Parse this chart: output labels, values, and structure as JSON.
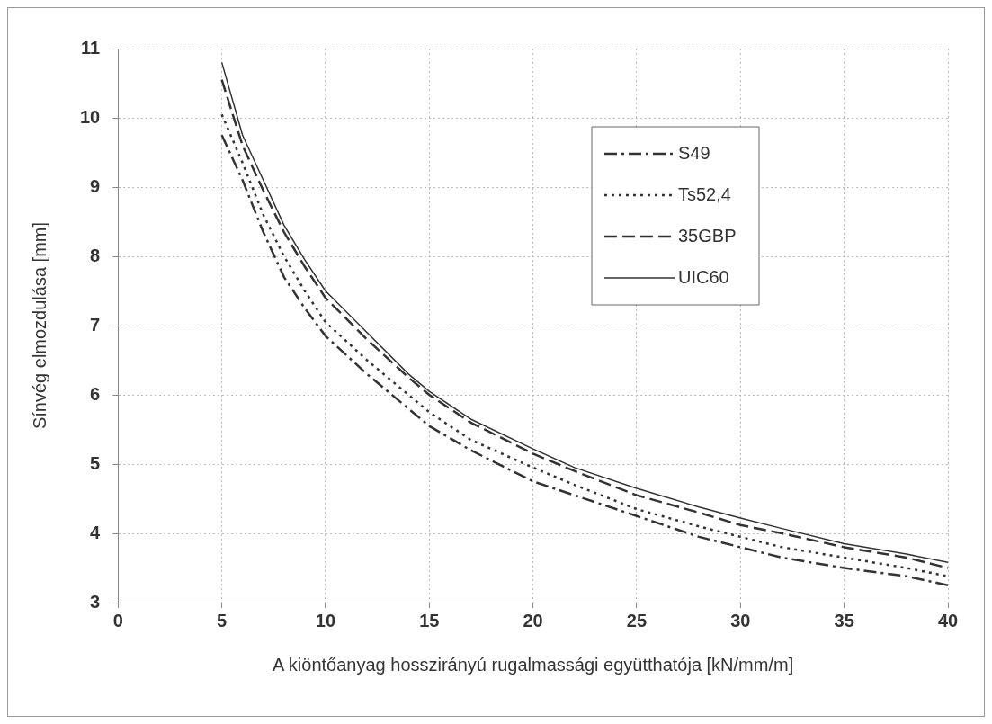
{
  "chart_data": {
    "type": "line",
    "xlabel": "A kiöntőanyag hosszirányú rugalmassági együtthatója [kN/mm/m]",
    "ylabel": "Sínvég elmozdulása [mm]",
    "x": [
      5,
      6,
      7,
      8,
      9,
      10,
      12,
      14,
      15,
      17,
      20,
      22,
      25,
      28,
      30,
      32,
      35,
      38,
      40
    ],
    "xlim": [
      0,
      40
    ],
    "xticks": [
      0,
      5,
      10,
      15,
      20,
      25,
      30,
      35,
      40
    ],
    "ylim": [
      3,
      11
    ],
    "yticks": [
      3,
      4,
      5,
      6,
      7,
      8,
      9,
      10,
      11
    ],
    "grid": true,
    "legend": "top right",
    "marker": "none",
    "series": [
      {
        "name": "S49",
        "color": "#333333",
        "line_style": "dashdot",
        "values": [
          9.75,
          9.1,
          8.35,
          7.7,
          7.25,
          6.85,
          6.3,
          5.8,
          5.55,
          5.2,
          4.75,
          4.55,
          4.25,
          3.95,
          3.8,
          3.65,
          3.5,
          3.38,
          3.25
        ]
      },
      {
        "name": "Ts52,4",
        "color": "#333333",
        "line_style": "dotted",
        "values": [
          10.05,
          9.35,
          8.6,
          8.0,
          7.5,
          7.05,
          6.5,
          6.0,
          5.75,
          5.35,
          4.95,
          4.7,
          4.35,
          4.1,
          3.95,
          3.8,
          3.65,
          3.5,
          3.38
        ]
      },
      {
        "name": "35GBP",
        "color": "#333333",
        "line_style": "dashed",
        "values": [
          10.55,
          9.6,
          8.95,
          8.35,
          7.85,
          7.4,
          6.8,
          6.25,
          6.0,
          5.6,
          5.15,
          4.9,
          4.55,
          4.3,
          4.12,
          4.0,
          3.8,
          3.65,
          3.5
        ]
      },
      {
        "name": "UIC60",
        "color": "#333333",
        "line_style": "solid",
        "values": [
          10.8,
          9.75,
          9.1,
          8.45,
          7.95,
          7.5,
          6.9,
          6.3,
          6.05,
          5.65,
          5.22,
          4.95,
          4.65,
          4.38,
          4.22,
          4.07,
          3.85,
          3.7,
          3.58
        ]
      }
    ]
  }
}
